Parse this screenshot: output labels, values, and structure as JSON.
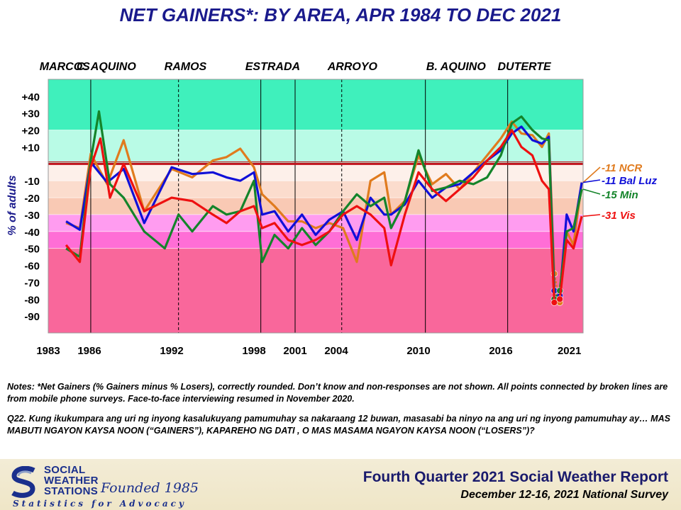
{
  "title": "NET GAINERS*: BY AREA, APR 1984 TO DEC 2021",
  "administrations": [
    {
      "label": "MARCOS",
      "year": 1983.4
    },
    {
      "label": "C. AQUINO",
      "year": 1986.1
    },
    {
      "label": "RAMOS",
      "year": 1992.5
    },
    {
      "label": "ESTRADA",
      "year": 1998.4
    },
    {
      "label": "ARROYO",
      "year": 2004.4
    },
    {
      "label": "B. AQUINO",
      "year": 2011.6
    },
    {
      "label": "DUTERTE",
      "year": 2016.8
    }
  ],
  "chart_data": {
    "type": "line",
    "ylabel": "% of adults",
    "xlim": [
      1983,
      2022
    ],
    "ylim": [
      -100,
      50
    ],
    "x_ticks": [
      "1983",
      "1986",
      "1992",
      "1998",
      "2001",
      "2004",
      "2010",
      "2016",
      "2021"
    ],
    "x_tick_years": [
      1983,
      1986,
      1992,
      1998,
      2001,
      2004,
      2010,
      2016,
      2021
    ],
    "y_ticks": [
      "+40",
      "+30",
      "+20",
      "+10",
      "-10",
      "-20",
      "-30",
      "-40",
      "-50",
      "-60",
      "-70",
      "-80",
      "-90"
    ],
    "y_tick_values": [
      40,
      30,
      20,
      10,
      -10,
      -20,
      -30,
      -40,
      -50,
      -60,
      -70,
      -80,
      -90
    ],
    "bands": [
      {
        "from": 20,
        "to": 50,
        "color": "#3ff0bc"
      },
      {
        "from": 0,
        "to": 20,
        "color": "#b9fbe6"
      },
      {
        "from": -10,
        "to": 0,
        "color": "#fdf0ea"
      },
      {
        "from": -20,
        "to": -10,
        "color": "#fbdccd"
      },
      {
        "from": -30,
        "to": -20,
        "color": "#f9c9b4"
      },
      {
        "from": -40,
        "to": -30,
        "color": "#ff9cf0"
      },
      {
        "from": -50,
        "to": -40,
        "color": "#ff6ed6"
      },
      {
        "from": -100,
        "to": -50,
        "color": "#f9679b"
      }
    ],
    "term_dividers": [
      1986.1,
      1992.5,
      1998.5,
      2001.0,
      2004.4,
      2010.5,
      2016.5
    ],
    "dashed_dividers": [
      1992.5,
      2004.4
    ],
    "series": [
      {
        "name": "NCR",
        "label": "-11 NCR",
        "color": "#e07b1e",
        "x": [
          1984.3,
          1985.3,
          1986.1,
          1987.3,
          1988.5,
          1990.0,
          1992.0,
          1993.5,
          1995.0,
          1996.0,
          1997.0,
          1998.0,
          1998.6,
          1999.5,
          2000.5,
          2001.5,
          2002.5,
          2003.5,
          2004.5,
          2005.5,
          2006.5,
          2007.5,
          2008.0,
          2009.0,
          2010.0,
          2011.0,
          2012.0,
          2013.0,
          2014.0,
          2015.0,
          2016.0,
          2016.8,
          2017.5,
          2018.3,
          2019.0,
          2019.5,
          2019.9,
          2020.3,
          2020.8,
          2021.3,
          2021.9
        ],
        "y": [
          -35,
          -38,
          6,
          -12,
          14,
          -28,
          -3,
          -8,
          2,
          4,
          9,
          -2,
          -18,
          -25,
          -34,
          -34,
          -38,
          -35,
          -38,
          -58,
          -10,
          -5,
          -30,
          -22,
          5,
          -12,
          -6,
          -15,
          -5,
          5,
          15,
          25,
          18,
          17,
          10,
          18,
          -65,
          -82,
          -40,
          -48,
          -11
        ]
      },
      {
        "name": "Bal Luz",
        "label": "-11 Bal Luz",
        "color": "#1010d8",
        "x": [
          1984.3,
          1985.3,
          1986.1,
          1987.3,
          1988.5,
          1990.0,
          1992.0,
          1993.5,
          1995.0,
          1996.0,
          1997.0,
          1998.0,
          1998.6,
          1999.5,
          2000.5,
          2001.5,
          2002.5,
          2003.5,
          2004.5,
          2005.5,
          2006.5,
          2007.5,
          2008.0,
          2009.0,
          2010.0,
          2011.0,
          2012.0,
          2013.0,
          2014.0,
          2015.0,
          2016.0,
          2016.8,
          2017.5,
          2018.3,
          2019.0,
          2019.5,
          2019.9,
          2020.3,
          2020.8,
          2021.3,
          2021.9
        ],
        "y": [
          -34,
          -39,
          1,
          -11,
          -3,
          -35,
          -2,
          -6,
          -5,
          -8,
          -10,
          -5,
          -30,
          -28,
          -40,
          -30,
          -42,
          -33,
          -28,
          -45,
          -20,
          -30,
          -30,
          -24,
          -10,
          -20,
          -14,
          -12,
          -5,
          2,
          8,
          18,
          22,
          14,
          12,
          16,
          -75,
          -78,
          -30,
          -40,
          -11
        ]
      },
      {
        "name": "Min",
        "label": "-15 Min",
        "color": "#14842a",
        "x": [
          1984.3,
          1985.3,
          1986.1,
          1986.7,
          1987.5,
          1988.5,
          1990.0,
          1991.5,
          1992.5,
          1993.5,
          1995.0,
          1996.0,
          1997.0,
          1998.0,
          1998.6,
          1999.5,
          2000.5,
          2001.5,
          2002.5,
          2003.5,
          2004.5,
          2005.5,
          2006.5,
          2007.5,
          2008.0,
          2009.0,
          2010.0,
          2011.0,
          2012.0,
          2013.0,
          2014.0,
          2015.0,
          2016.0,
          2016.8,
          2017.5,
          2018.3,
          2019.0,
          2019.5,
          2019.9,
          2020.3,
          2020.8,
          2021.3,
          2021.9
        ],
        "y": [
          -50,
          -55,
          2,
          31,
          -12,
          -20,
          -40,
          -50,
          -30,
          -40,
          -25,
          -30,
          -28,
          -10,
          -58,
          -42,
          -50,
          -38,
          -48,
          -40,
          -28,
          -18,
          -25,
          -20,
          -38,
          -22,
          8,
          -16,
          -14,
          -10,
          -12,
          -8,
          5,
          24,
          28,
          20,
          15,
          14,
          -80,
          -75,
          -40,
          -38,
          -15
        ]
      },
      {
        "name": "Vis",
        "label": "-31 Vis",
        "color": "#ee1010",
        "x": [
          1984.3,
          1985.3,
          1986.1,
          1986.8,
          1987.5,
          1988.5,
          1990.0,
          1992.0,
          1993.5,
          1995.0,
          1996.0,
          1997.0,
          1998.0,
          1998.6,
          1999.5,
          2000.5,
          2001.5,
          2002.5,
          2003.5,
          2004.5,
          2005.5,
          2006.5,
          2007.5,
          2008.0,
          2009.0,
          2010.0,
          2011.0,
          2012.0,
          2013.0,
          2014.0,
          2015.0,
          2016.0,
          2016.8,
          2017.5,
          2018.3,
          2019.0,
          2019.5,
          2019.9,
          2020.3,
          2020.8,
          2021.3,
          2021.9
        ],
        "y": [
          -48,
          -58,
          -2,
          15,
          -20,
          0,
          -28,
          -20,
          -22,
          -30,
          -35,
          -28,
          -25,
          -38,
          -35,
          -45,
          -48,
          -45,
          -40,
          -30,
          -25,
          -30,
          -38,
          -60,
          -30,
          -5,
          -15,
          -22,
          -15,
          -8,
          2,
          10,
          20,
          10,
          5,
          -10,
          -15,
          -82,
          -80,
          -45,
          -50,
          -31
        ]
      }
    ],
    "notes": {
      "series_start_years": [
        1984.3,
        1984.3,
        1984.3,
        1984.3
      ]
    }
  },
  "notes": {
    "line1": "Notes: *Net Gainers (% Gainers minus % Losers), correctly rounded. Don’t know and non-responses are not shown. All points connected by broken lines are from mobile phone surveys. Face-to-face interviewing resumed in November 2020.",
    "line2": "Q22. Kung ikukumpara ang uri ng inyong kasalukuyang pamumuhay sa nakaraang 12 buwan, masasabi ba ninyo na ang uri ng inyong pamumuhay ay… MAS MABUTI NGAYON KAYSA NOON (“GAINERS”), KAPAREHO NG DATI , O MAS MASAMA NGAYON KAYSA NOON (“LOSERS”)?"
  },
  "footer": {
    "org_line1": "SOCIAL",
    "org_line2": "WEATHER",
    "org_line3": "STATIONS",
    "founded": "Founded 1985",
    "tagline": "Statistics for Advocacy",
    "report_title": "Fourth Quarter 2021 Social Weather Report",
    "survey": "December 12-16, 2021 National Survey"
  },
  "colors": {
    "title": "#1a1a8c",
    "zero_line": "#c0101a"
  }
}
